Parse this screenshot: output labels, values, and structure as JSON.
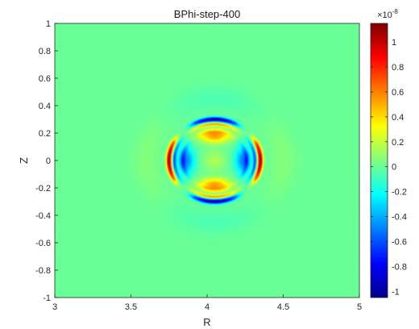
{
  "chart_data": {
    "type": "heatmap",
    "title": "BPhi-step-400",
    "xlabel": "R",
    "ylabel": "Z",
    "xlim": [
      3,
      5
    ],
    "ylim": [
      -1,
      1
    ],
    "x_ticks": [
      "3",
      "3.5",
      "4",
      "4.5",
      "5"
    ],
    "y_ticks": [
      "-1",
      "-0.8",
      "-0.6",
      "-0.4",
      "-0.2",
      "0",
      "0.2",
      "0.4",
      "0.6",
      "0.8",
      "1"
    ],
    "colorbar": {
      "colormap": "jet",
      "multiplier": "×10",
      "exponent": "-8",
      "clim": [
        -1.05,
        1.15
      ],
      "ticks": [
        "-1",
        "-0.8",
        "-0.6",
        "-0.4",
        "-0.2",
        "0",
        "0.2",
        "0.4",
        "0.6",
        "0.8",
        "1"
      ]
    },
    "field_features": {
      "center": [
        4.05,
        0.0
      ],
      "background_value": 0.0,
      "ring_outer_radius": 0.3,
      "top_bottom_lobes": {
        "z": 0.18,
        "value": 0.55
      },
      "left_right_lobes": {
        "r_offset": 0.19,
        "value": -0.5
      },
      "ring_top_bottom_value": -1.0,
      "ring_left_right_value": 1.1,
      "center_value": 0.15
    }
  }
}
